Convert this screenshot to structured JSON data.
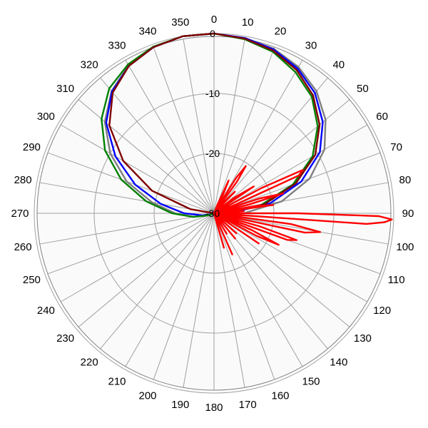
{
  "chart_data": {
    "type": "polar-line",
    "title": "",
    "angle_direction": "clockwise",
    "zero_at": "top",
    "angle_ticks": [
      0,
      10,
      20,
      30,
      40,
      50,
      60,
      70,
      80,
      90,
      100,
      110,
      120,
      130,
      140,
      150,
      160,
      170,
      180,
      190,
      200,
      210,
      220,
      230,
      240,
      250,
      260,
      270,
      280,
      290,
      300,
      310,
      320,
      330,
      340,
      350
    ],
    "angle_tick_labels": [
      "0",
      "10",
      "20",
      "30",
      "40",
      "50",
      "60",
      "70",
      "80",
      "90",
      "100",
      "110",
      "120",
      "130",
      "140",
      "150",
      "160",
      "170",
      "180",
      "190",
      "200",
      "210",
      "220",
      "230",
      "240",
      "250",
      "260",
      "270",
      "280",
      "290",
      "300",
      "310",
      "320",
      "330",
      "340",
      "350"
    ],
    "radial_range": [
      -30,
      0
    ],
    "radial_ticks": [
      0,
      -10,
      -20,
      -30
    ],
    "radial_tick_labels": [
      "0",
      "-10",
      "-20",
      "-30"
    ],
    "outer_ring_value": 0,
    "outer_ring_extends_to": 30,
    "grid": true,
    "series": [
      {
        "color": "#808080",
        "angles": [
          0,
          10,
          20,
          30,
          40,
          50,
          60,
          70,
          80,
          90,
          95,
          100,
          105,
          110,
          120,
          130,
          140,
          150,
          160,
          170,
          180,
          190,
          200,
          210,
          220,
          230,
          240,
          250,
          260,
          270,
          280,
          290,
          300,
          310,
          320,
          330,
          340,
          350,
          360
        ],
        "values": [
          0,
          -0.3,
          -0.8,
          -1.8,
          -3.4,
          -5.7,
          -8.7,
          -13,
          -18.5,
          -25,
          -28,
          -30,
          -30,
          -30,
          -30,
          -30,
          -30,
          -30,
          -30,
          -30,
          -30,
          -30,
          -30,
          -30,
          -30,
          -30,
          -30,
          -29.5,
          -26.5,
          -23.5,
          -19.5,
          -14.5,
          -10,
          -6.2,
          -3.4,
          -1.5,
          -0.4,
          0,
          0
        ]
      },
      {
        "color": "#0000ff",
        "angles": [
          0,
          10,
          20,
          30,
          40,
          50,
          60,
          70,
          80,
          90,
          95,
          100,
          110,
          120,
          130,
          140,
          150,
          160,
          170,
          180,
          190,
          200,
          210,
          220,
          230,
          240,
          250,
          260,
          270,
          280,
          290,
          300,
          310,
          320,
          330,
          340,
          350,
          360
        ],
        "values": [
          0,
          -0.3,
          -0.9,
          -2.1,
          -3.8,
          -6.3,
          -9.6,
          -14.5,
          -20.5,
          -27.5,
          -30,
          -30,
          -30,
          -30,
          -30,
          -30,
          -30,
          -30,
          -30,
          -30,
          -30,
          -30,
          -30,
          -30,
          -30,
          -30,
          -29.5,
          -28,
          -25,
          -21,
          -16,
          -11,
          -6.5,
          -3.5,
          -1.6,
          -0.5,
          0,
          0
        ]
      },
      {
        "color": "#008000",
        "angles": [
          0,
          10,
          20,
          30,
          40,
          50,
          60,
          70,
          80,
          90,
          95,
          100,
          110,
          120,
          130,
          140,
          150,
          160,
          170,
          180,
          190,
          200,
          210,
          220,
          230,
          240,
          250,
          260,
          270,
          280,
          290,
          300,
          310,
          320,
          330,
          340,
          350,
          360
        ],
        "values": [
          0,
          -0.5,
          -1.3,
          -2.8,
          -4.6,
          -7.4,
          -11,
          -16,
          -22,
          -28,
          -30,
          -30,
          -30,
          -30,
          -30,
          -30,
          -30,
          -30,
          -30,
          -30,
          -30,
          -30,
          -30,
          -30,
          -30,
          -30,
          -29,
          -26.5,
          -23,
          -18.5,
          -13.5,
          -9,
          -5.5,
          -2.8,
          -1.3,
          -0.4,
          0,
          0
        ]
      },
      {
        "color": "#800000",
        "angles": [
          0,
          10,
          20,
          30,
          40,
          50,
          60,
          70,
          80,
          90,
          100,
          110,
          120,
          130,
          140,
          150,
          160,
          170,
          180,
          190,
          200,
          210,
          220,
          230,
          240,
          250,
          260,
          270,
          280,
          290,
          300,
          310,
          320,
          330,
          340,
          350,
          360
        ],
        "values": [
          0,
          -0.4,
          -1.1,
          -2.4,
          -4.3,
          -7,
          -10.5,
          -15.5,
          -21.5,
          -30,
          -30,
          -30,
          -30,
          -30,
          -30,
          -30,
          -30,
          -30,
          -30,
          -30,
          -30,
          -30,
          -30,
          -30,
          -30,
          -30,
          -30,
          -30,
          -26,
          -19,
          -12.5,
          -7.2,
          -3.7,
          -1.6,
          -0.5,
          0,
          0
        ]
      },
      {
        "color": "#ff0000",
        "angles": [
          20,
          22,
          24,
          26,
          28,
          30,
          32,
          34,
          36,
          38,
          40,
          44,
          48,
          52,
          56,
          60,
          62,
          64,
          66,
          68,
          70,
          72,
          74,
          76,
          78,
          80,
          82,
          84,
          86,
          88,
          90,
          91,
          92,
          93,
          94,
          96,
          98,
          100,
          102,
          104,
          106,
          108,
          110,
          112,
          114,
          116,
          118,
          120,
          124,
          128,
          132,
          136,
          140,
          144,
          148,
          152,
          156,
          160,
          164,
          168,
          172
        ],
        "values": [
          -30,
          -28.5,
          -24,
          -26.5,
          -30,
          -29,
          -23,
          -20.5,
          -23.5,
          -30,
          -28,
          -25,
          -30,
          -26,
          -22,
          -30,
          -21,
          -13.5,
          -14.5,
          -26,
          -30,
          -22,
          -18,
          -24,
          -30,
          -23,
          -20,
          -30,
          -25,
          -30,
          -16,
          -2.5,
          -0.3,
          -1.5,
          -4.5,
          -30,
          -17,
          -12,
          -14.5,
          -30,
          -22,
          -15.5,
          -17,
          -30,
          -23,
          -18,
          -22,
          -30,
          -21,
          -30,
          -25,
          -30,
          -24.5,
          -30,
          -26,
          -30,
          -22.5,
          -30,
          -24,
          -30,
          -30
        ]
      }
    ]
  }
}
